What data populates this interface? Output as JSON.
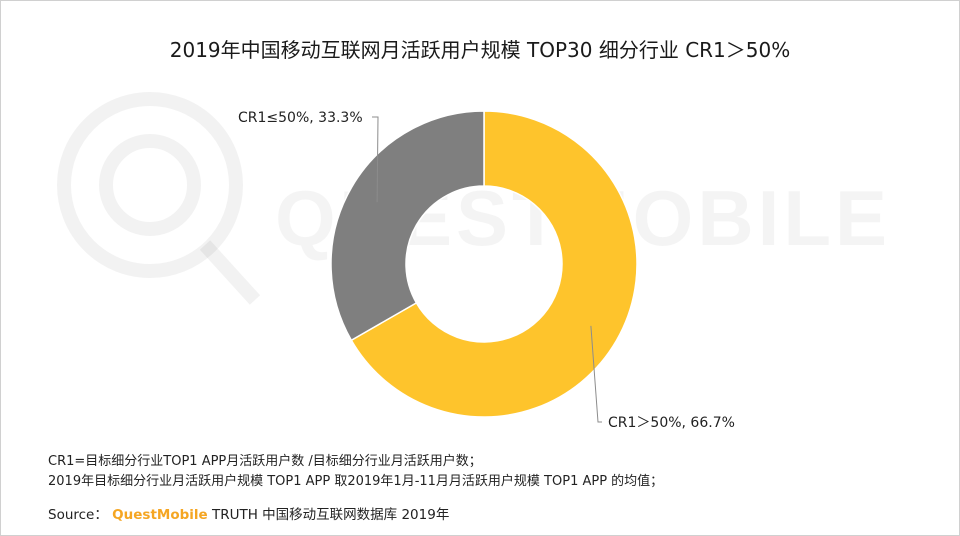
{
  "title": "2019年中国移动互联网月活跃用户规模 TOP30 细分行业 CR1＞50%",
  "watermark_text": "QUESTMOBILE",
  "chart_data": {
    "type": "pie",
    "donut": true,
    "title": "2019年中国移动互联网月活跃用户规模 TOP30 细分行业 CR1＞50%",
    "slices": [
      {
        "label": "CR1＞50%",
        "value": 66.7,
        "color": "#fec42c",
        "data_label": "CR1＞50%, 66.7%"
      },
      {
        "label": "CR1≤50%",
        "value": 33.3,
        "color": "#7f7f7f",
        "data_label": "CR1≤50%, 33.3%"
      }
    ]
  },
  "footnotes": [
    "CR1=目标细分行业TOP1 APP月活跃用户数 /目标细分行业月活跃用户数；",
    "2019年目标细分行业月活跃用户规模 TOP1 APP 取2019年1月-11月月活跃用户规模 TOP1 APP 的均值；"
  ],
  "source": {
    "prefix": "Source：",
    "brand": "QuestMobile",
    "rest": "TRUTH 中国移动互联网数据库 2019年"
  },
  "colors": {
    "accent": "#fec42c",
    "gray": "#7f7f7f",
    "brand": "#f5a623"
  }
}
